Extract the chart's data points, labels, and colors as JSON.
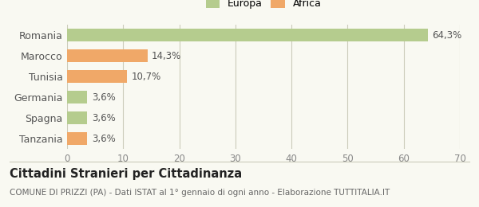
{
  "categories": [
    "Romania",
    "Marocco",
    "Tunisia",
    "Germania",
    "Spagna",
    "Tanzania"
  ],
  "values": [
    64.3,
    14.3,
    10.7,
    3.6,
    3.6,
    3.6
  ],
  "colors": [
    "#b5cc8e",
    "#f0a868",
    "#f0a868",
    "#b5cc8e",
    "#b5cc8e",
    "#f0a868"
  ],
  "labels": [
    "64,3%",
    "14,3%",
    "10,7%",
    "3,6%",
    "3,6%",
    "3,6%"
  ],
  "legend": [
    {
      "label": "Europa",
      "color": "#b5cc8e"
    },
    {
      "label": "Africa",
      "color": "#f0a868"
    }
  ],
  "xlim": [
    0,
    70
  ],
  "xticks": [
    0,
    10,
    20,
    30,
    40,
    50,
    60,
    70
  ],
  "title": "Cittadini Stranieri per Cittadinanza",
  "subtitle": "COMUNE DI PRIZZI (PA) - Dati ISTAT al 1° gennaio di ogni anno - Elaborazione TUTTITALIA.IT",
  "bar_height": 0.6,
  "background_color": "#f9f9f2",
  "grid_color": "#ccccbb",
  "label_fontsize": 8.5,
  "ytick_fontsize": 9,
  "xtick_fontsize": 8.5,
  "title_fontsize": 10.5,
  "subtitle_fontsize": 7.5
}
